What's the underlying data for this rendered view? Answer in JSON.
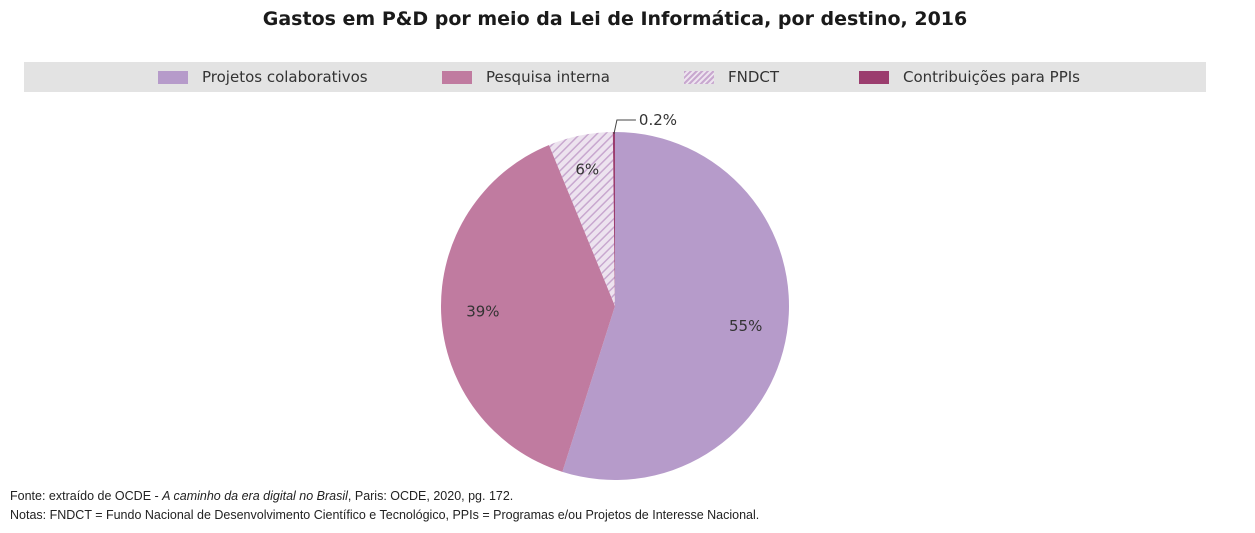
{
  "chart_data": {
    "type": "pie",
    "title": "Gastos em P&D por meio da Lei de Informática, por destino, 2016",
    "legend_position": "top",
    "categories": [
      "Projetos colaborativos",
      "Pesquisa interna",
      "FNDCT",
      "Contribuições para PPIs"
    ],
    "values": [
      55,
      39,
      6,
      0.2
    ],
    "labels": [
      "55%",
      "39%",
      "6%",
      "0.2%"
    ],
    "colors": [
      "#b69bca",
      "#c07ba0",
      "#c8a8cf",
      "#9b3d6e"
    ],
    "patterns": [
      "solid",
      "solid",
      "hatch",
      "solid"
    ]
  },
  "footnotes": {
    "source_prefix": "Fonte: extraído de OCDE - ",
    "source_title": "A caminho da era digital no Brasil",
    "source_suffix": ", Paris: OCDE, 2020,  pg. 172.",
    "notes": "Notas: FNDCT = Fundo Nacional de Desenvolvimento Científico e Tecnológico, PPIs = Programas e/ou Projetos de Interesse Nacional."
  }
}
